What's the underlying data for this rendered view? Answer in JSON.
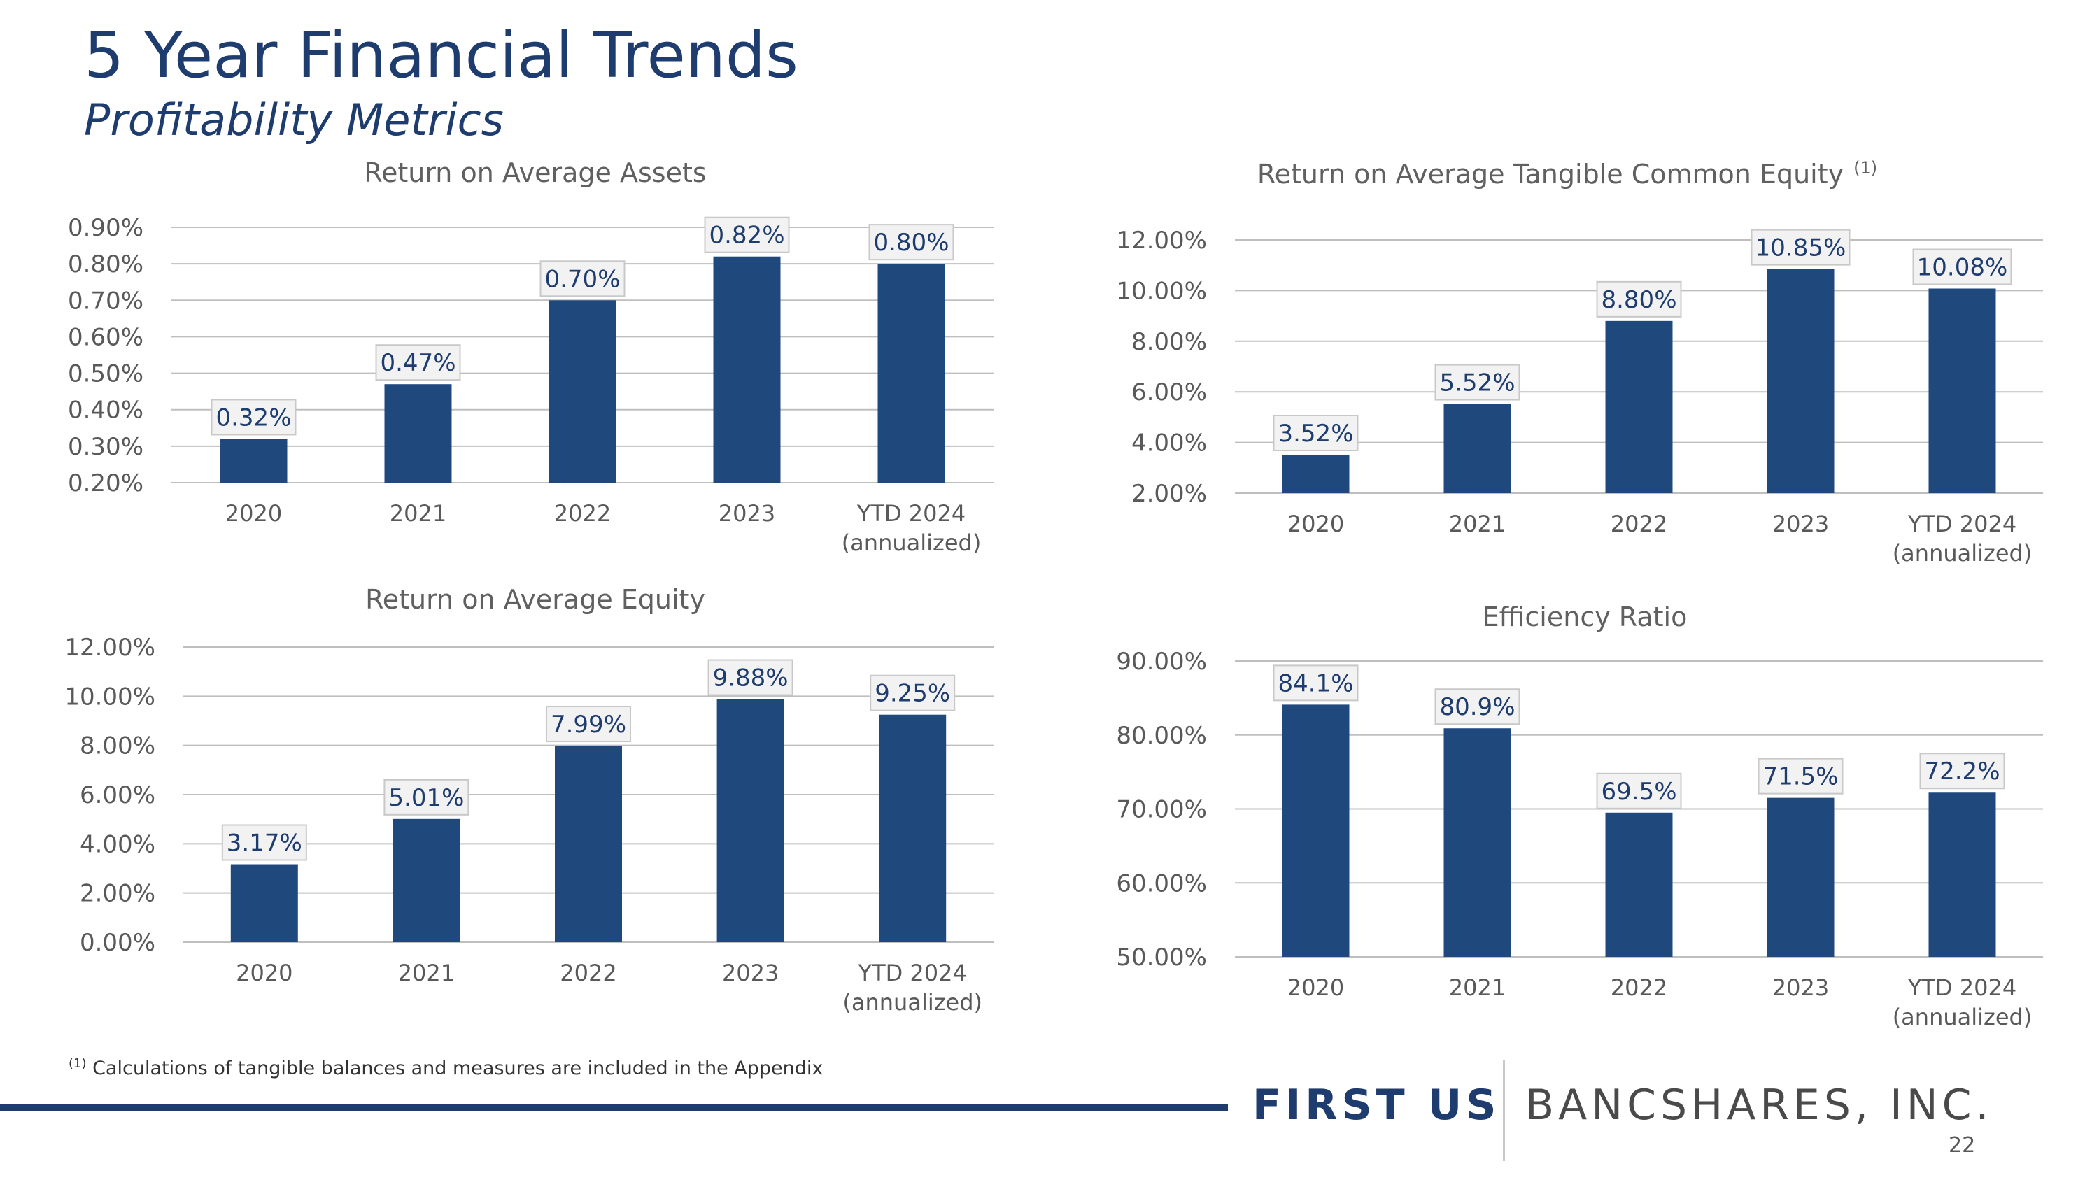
{
  "header": {
    "title": "5 Year Financial Trends",
    "subtitle": "Profitability Metrics"
  },
  "colors": {
    "bar": "#1f497d",
    "label_text": "#1f3c6e",
    "grid": "#bfbfbf",
    "label_box_bg": "#f2f2f2",
    "label_box_border": "#c8c8c8"
  },
  "chart_data": [
    {
      "type": "bar",
      "title": "Return on Average Assets",
      "title_sup": "",
      "categories": [
        [
          "2020"
        ],
        [
          "2021"
        ],
        [
          "2022"
        ],
        [
          "2023"
        ],
        [
          "YTD 2024",
          "(annualized)"
        ]
      ],
      "values": [
        0.32,
        0.47,
        0.7,
        0.82,
        0.8
      ],
      "data_labels": [
        "0.32%",
        "0.47%",
        "0.70%",
        "0.82%",
        "0.80%"
      ],
      "yticks": [
        0.2,
        0.3,
        0.4,
        0.5,
        0.6,
        0.7,
        0.8,
        0.9
      ],
      "ytick_labels": [
        "0.20%",
        "0.30%",
        "0.40%",
        "0.50%",
        "0.60%",
        "0.70%",
        "0.80%",
        "0.90%"
      ],
      "ylim": [
        0.2,
        0.9
      ],
      "xlabel": "",
      "ylabel": ""
    },
    {
      "type": "bar",
      "title": "Return on Average Tangible Common Equity",
      "title_sup": "(1)",
      "categories": [
        [
          "2020"
        ],
        [
          "2021"
        ],
        [
          "2022"
        ],
        [
          "2023"
        ],
        [
          "YTD 2024",
          "(annualized)"
        ]
      ],
      "values": [
        3.52,
        5.52,
        8.8,
        10.85,
        10.08
      ],
      "data_labels": [
        "3.52%",
        "5.52%",
        "8.80%",
        "10.85%",
        "10.08%"
      ],
      "yticks": [
        2,
        4,
        6,
        8,
        10,
        12
      ],
      "ytick_labels": [
        "2.00%",
        "4.00%",
        "6.00%",
        "8.00%",
        "10.00%",
        "12.00%"
      ],
      "ylim": [
        2,
        12
      ],
      "xlabel": "",
      "ylabel": ""
    },
    {
      "type": "bar",
      "title": "Return on Average Equity",
      "title_sup": "",
      "categories": [
        [
          "2020"
        ],
        [
          "2021"
        ],
        [
          "2022"
        ],
        [
          "2023"
        ],
        [
          "YTD 2024",
          "(annualized)"
        ]
      ],
      "values": [
        3.17,
        5.01,
        7.99,
        9.88,
        9.25
      ],
      "data_labels": [
        "3.17%",
        "5.01%",
        "7.99%",
        "9.88%",
        "9.25%"
      ],
      "yticks": [
        0,
        2,
        4,
        6,
        8,
        10,
        12
      ],
      "ytick_labels": [
        "0.00%",
        "2.00%",
        "4.00%",
        "6.00%",
        "8.00%",
        "10.00%",
        "12.00%"
      ],
      "ylim": [
        0,
        12
      ],
      "xlabel": "",
      "ylabel": ""
    },
    {
      "type": "bar",
      "title": "Efficiency Ratio",
      "title_sup": "",
      "categories": [
        [
          "2020"
        ],
        [
          "2021"
        ],
        [
          "2022"
        ],
        [
          "2023"
        ],
        [
          "YTD 2024",
          "(annualized)"
        ]
      ],
      "values": [
        84.1,
        80.9,
        69.5,
        71.5,
        72.2
      ],
      "data_labels": [
        "84.1%",
        "80.9%",
        "69.5%",
        "71.5%",
        "72.2%"
      ],
      "yticks": [
        50,
        60,
        70,
        80,
        90
      ],
      "ytick_labels": [
        "50.00%",
        "60.00%",
        "70.00%",
        "80.00%",
        "90.00%"
      ],
      "ylim": [
        50,
        90
      ],
      "xlabel": "",
      "ylabel": ""
    }
  ],
  "footnote": {
    "marker": "(1)",
    "text": " Calculations of tangible balances and measures are included in the Appendix"
  },
  "logo": {
    "left": "FIRST US",
    "right": "BANCSHARES, INC."
  },
  "page_number": "22"
}
